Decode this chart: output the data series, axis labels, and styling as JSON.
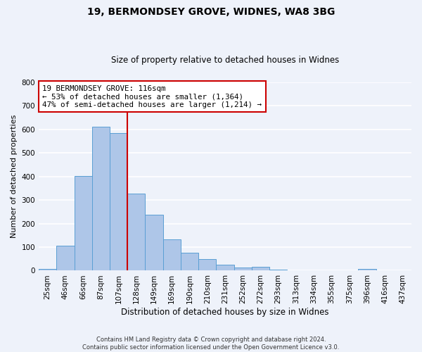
{
  "title": "19, BERMONDSEY GROVE, WIDNES, WA8 3BG",
  "subtitle": "Size of property relative to detached houses in Widnes",
  "xlabel": "Distribution of detached houses by size in Widnes",
  "ylabel": "Number of detached properties",
  "bar_labels": [
    "25sqm",
    "46sqm",
    "66sqm",
    "87sqm",
    "107sqm",
    "128sqm",
    "149sqm",
    "169sqm",
    "190sqm",
    "210sqm",
    "231sqm",
    "252sqm",
    "272sqm",
    "293sqm",
    "313sqm",
    "334sqm",
    "355sqm",
    "375sqm",
    "396sqm",
    "416sqm",
    "437sqm"
  ],
  "bar_values": [
    7,
    106,
    403,
    610,
    585,
    328,
    237,
    133,
    76,
    50,
    25,
    13,
    16,
    3,
    0,
    0,
    0,
    0,
    8,
    0,
    0
  ],
  "bar_color": "#aec6e8",
  "bar_edge_color": "#5a9fd4",
  "property_line_label": "19 BERMONDSEY GROVE: 116sqm",
  "annotation_line1": "← 53% of detached houses are smaller (1,364)",
  "annotation_line2": "47% of semi-detached houses are larger (1,214) →",
  "box_color": "#cc0000",
  "ylim": [
    0,
    800
  ],
  "yticks": [
    0,
    100,
    200,
    300,
    400,
    500,
    600,
    700,
    800
  ],
  "background_color": "#eef2fa",
  "grid_color": "#ffffff",
  "footer_line1": "Contains HM Land Registry data © Crown copyright and database right 2024.",
  "footer_line2": "Contains public sector information licensed under the Open Government Licence v3.0."
}
